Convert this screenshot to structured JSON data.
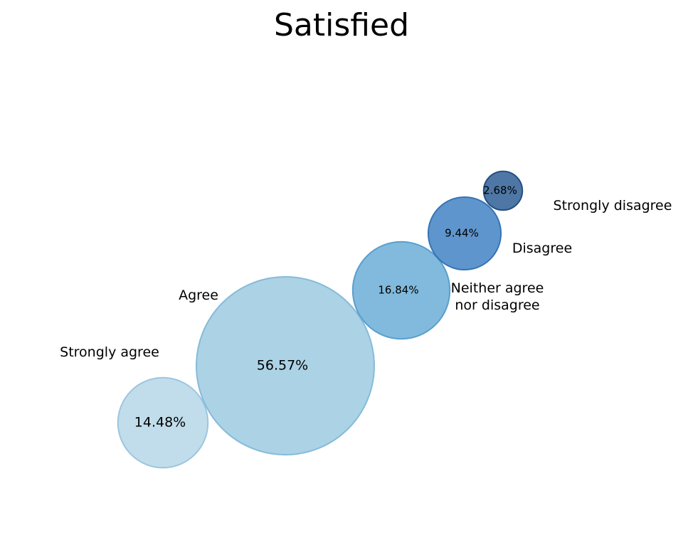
{
  "chart_data": {
    "type": "bubble",
    "title": "Satisfied",
    "categories": [
      "Strongly agree",
      "Agree",
      "Neither agree\nnor disagree",
      "Disagree",
      "Strongly disagree"
    ],
    "values": [
      14.48,
      56.57,
      16.84,
      9.44,
      2.68
    ],
    "value_labels": [
      "14.48%",
      "56.57%",
      "16.84%",
      "9.44%",
      "2.68%"
    ],
    "colors": [
      "#b6d7e8",
      "#9ecae1",
      "#6baed6",
      "#4382c4",
      "#2f5f97"
    ],
    "grid": false,
    "legend": "none"
  }
}
